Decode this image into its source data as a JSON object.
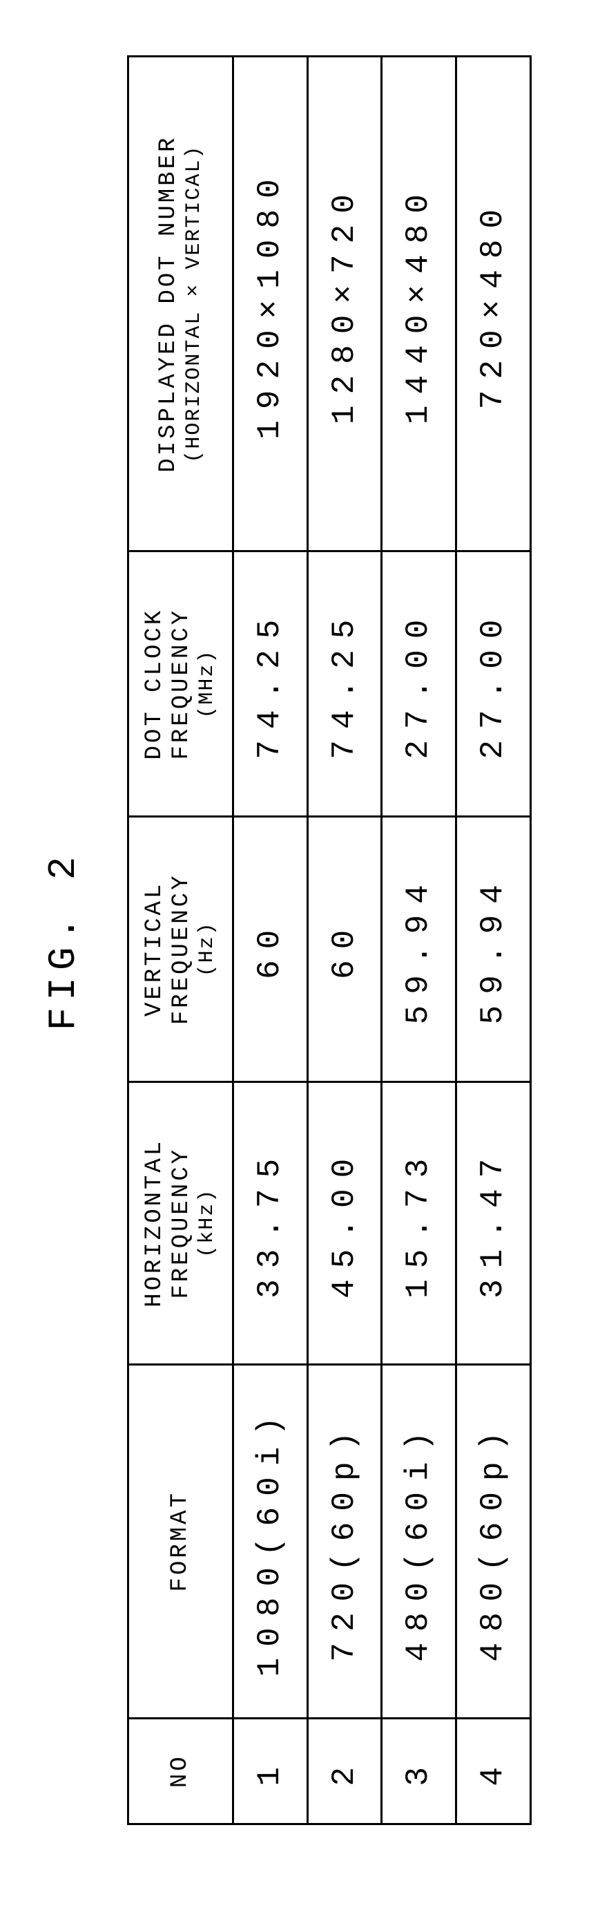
{
  "figure_label": "FIG. 2",
  "columns": {
    "no": {
      "header": "NO"
    },
    "fmt": {
      "header": "FORMAT"
    },
    "hf": {
      "header": "HORIZONTAL FREQUENCY",
      "unit": "(kHz)"
    },
    "vf": {
      "header": "VERTICAL FREQUENCY",
      "unit": "(Hz)"
    },
    "dc": {
      "header": "DOT CLOCK FREQUENCY",
      "unit": "(MHz)"
    },
    "dots": {
      "header": "DISPLAYED DOT NUMBER",
      "unit": "(HORIZONTAL × VERTICAL)"
    }
  },
  "rows": [
    {
      "no": "1",
      "fmt": "1080(60i)",
      "hf": "33.75",
      "vf": "60",
      "dc": "74.25",
      "dots": "1920×1080"
    },
    {
      "no": "2",
      "fmt": "720(60p)",
      "hf": "45.00",
      "vf": "60",
      "dc": "74.25",
      "dots": "1280×720"
    },
    {
      "no": "3",
      "fmt": "480(60i)",
      "hf": "15.73",
      "vf": "59.94",
      "dc": "27.00",
      "dots": "1440×480"
    },
    {
      "no": "4",
      "fmt": "480(60p)",
      "hf": "31.47",
      "vf": "59.94",
      "dc": "27.00",
      "dots": "720×480"
    }
  ]
}
